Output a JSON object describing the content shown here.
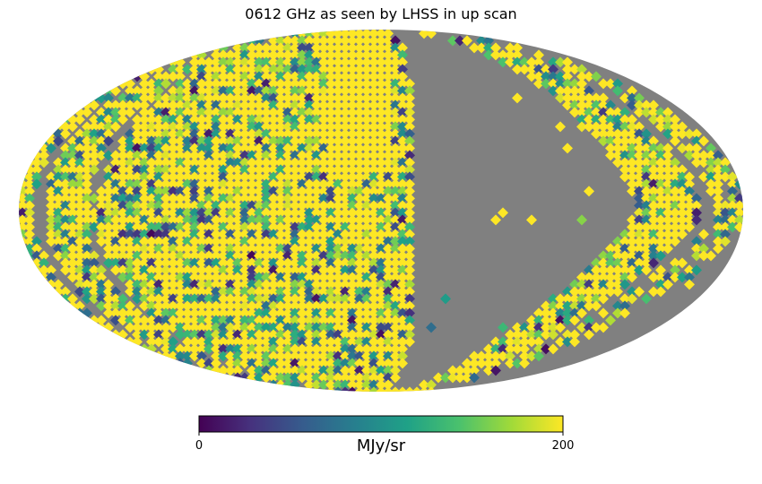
{
  "chart_data": {
    "type": "heatmap",
    "projection": "mollweide",
    "title": "0612 GHz as seen by LHSS in up scan",
    "colormap": "viridis",
    "colormap_stops": [
      "#440154",
      "#46327e",
      "#365c8d",
      "#277f8e",
      "#1fa187",
      "#4ac16d",
      "#a0da39",
      "#fde725"
    ],
    "mask_color": "#808080",
    "colorbar": {
      "min": 0,
      "max": 200,
      "unit_label": "MJy/sr",
      "tick_labels": [
        "0",
        "200"
      ]
    },
    "typical_value_range": [
      0,
      200
    ],
    "grid": false
  }
}
